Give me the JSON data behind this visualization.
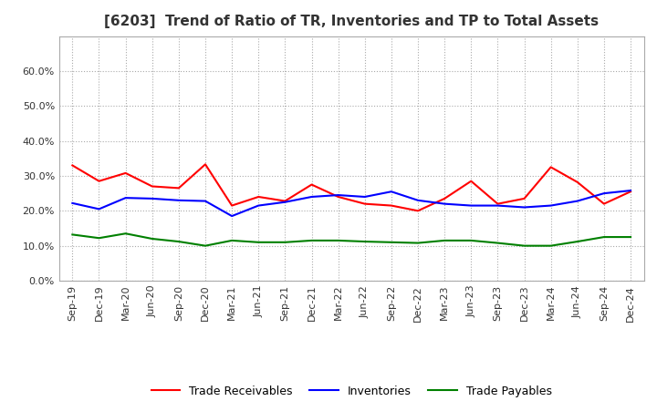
{
  "title": "[6203]  Trend of Ratio of TR, Inventories and TP to Total Assets",
  "x_labels": [
    "Sep-19",
    "Dec-19",
    "Mar-20",
    "Jun-20",
    "Sep-20",
    "Dec-20",
    "Mar-21",
    "Jun-21",
    "Sep-21",
    "Dec-21",
    "Mar-22",
    "Jun-22",
    "Sep-22",
    "Dec-22",
    "Mar-23",
    "Jun-23",
    "Sep-23",
    "Dec-23",
    "Mar-24",
    "Jun-24",
    "Sep-24",
    "Dec-24"
  ],
  "trade_receivables": [
    0.33,
    0.285,
    0.308,
    0.27,
    0.265,
    0.333,
    0.215,
    0.24,
    0.228,
    0.275,
    0.24,
    0.22,
    0.215,
    0.2,
    0.235,
    0.285,
    0.22,
    0.235,
    0.325,
    0.282,
    0.22,
    0.255
  ],
  "inventories": [
    0.222,
    0.205,
    0.237,
    0.235,
    0.23,
    0.228,
    0.185,
    0.215,
    0.225,
    0.24,
    0.245,
    0.24,
    0.255,
    0.23,
    0.22,
    0.215,
    0.215,
    0.21,
    0.215,
    0.228,
    0.25,
    0.258
  ],
  "trade_payables": [
    0.132,
    0.122,
    0.135,
    0.12,
    0.112,
    0.1,
    0.115,
    0.11,
    0.11,
    0.115,
    0.115,
    0.112,
    0.11,
    0.108,
    0.115,
    0.115,
    0.108,
    0.1,
    0.1,
    0.112,
    0.125,
    0.125
  ],
  "ylim": [
    0.0,
    0.7
  ],
  "yticks": [
    0.0,
    0.1,
    0.2,
    0.3,
    0.4,
    0.5,
    0.6
  ],
  "line_colors": {
    "trade_receivables": "#ff0000",
    "inventories": "#0000ff",
    "trade_payables": "#008000"
  },
  "background_color": "#ffffff",
  "grid_color": "#aaaaaa"
}
